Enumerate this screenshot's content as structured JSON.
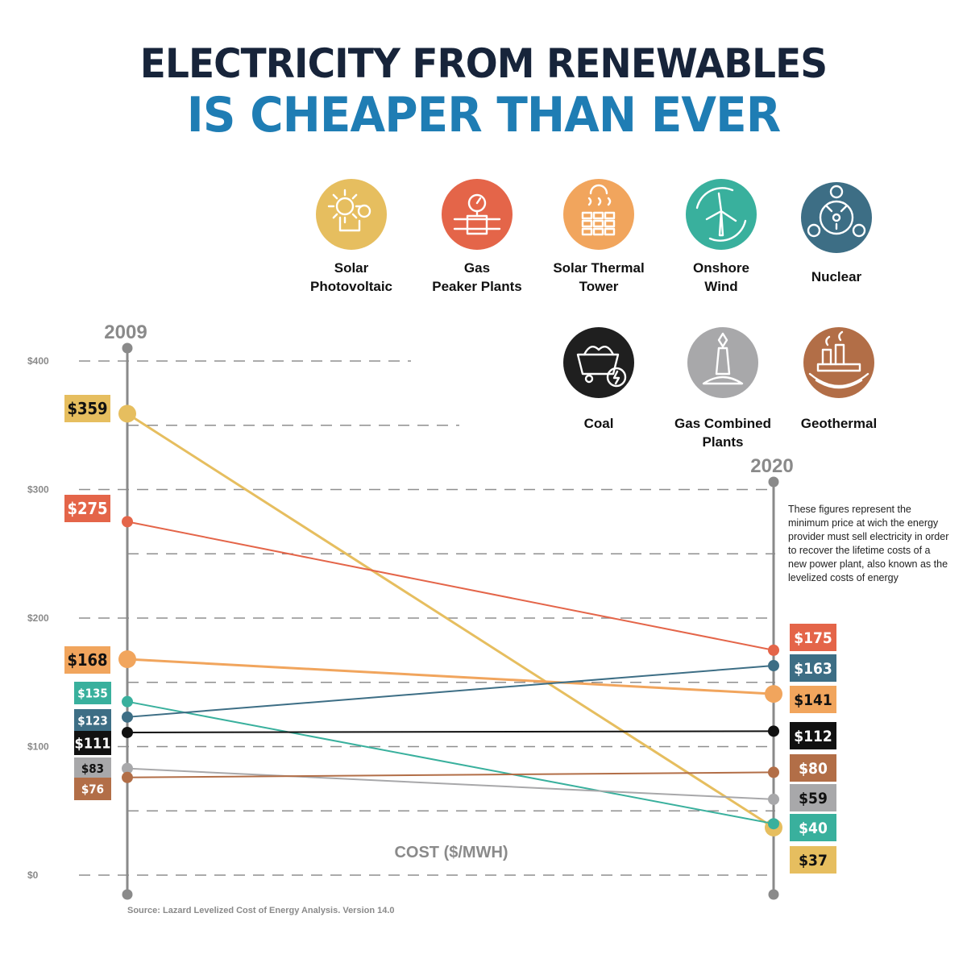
{
  "header": {
    "title_line1": "ELECTRICITY FROM RENEWABLES",
    "title_line2": "IS CHEAPER THAN EVER"
  },
  "legend": [
    {
      "key": "solar_pv",
      "line1": "Solar",
      "line2": "Photovoltaic",
      "color": "#e6be5f",
      "icon": "solar-panel-sun-icon"
    },
    {
      "key": "gas_peaker",
      "line1": "Gas",
      "line2": "Peaker Plants",
      "color": "#e46549",
      "icon": "gas-pipe-gauge-icon"
    },
    {
      "key": "solar_thermal",
      "line1": "Solar Thermal",
      "line2": "Tower",
      "color": "#f1a55d",
      "icon": "solar-thermal-heat-icon"
    },
    {
      "key": "onshore_wind",
      "line1": "Onshore",
      "line2": "Wind",
      "color": "#39b09d",
      "icon": "wind-turbine-icon"
    },
    {
      "key": "nuclear",
      "line1": "Nuclear",
      "line2": "",
      "color": "#3d6e85",
      "icon": "radiation-icon"
    },
    {
      "key": "coal",
      "line1": "Coal",
      "line2": "",
      "color": "#1f1f1f",
      "icon": "coal-cart-icon"
    },
    {
      "key": "gas_combined",
      "line1": "Gas Combined",
      "line2": "Plants",
      "color": "#a8a8aa",
      "icon": "gas-flame-tower-icon"
    },
    {
      "key": "geothermal",
      "line1": "Geothermal",
      "line2": "",
      "color": "#b26e47",
      "icon": "geothermal-plant-icon"
    }
  ],
  "note": "These figures represent the minimum price at wich the energy provider must sell electricity in order to recover the lifetime costs of a new power plant, also known as the levelized costs of energy",
  "source": "Source: Lazard Levelized Cost of Energy Analysis. Version 14.0",
  "chart_data": {
    "type": "line",
    "x": [
      "2009",
      "2020"
    ],
    "ylabel": "COST ($/MWH)",
    "ylim": [
      0,
      400
    ],
    "yticks": [
      0,
      100,
      200,
      300,
      400
    ],
    "ytick_labels": [
      "$0",
      "$100",
      "$200",
      "$300",
      "$400"
    ],
    "grid": "dashed horizontal",
    "series": [
      {
        "name": "Solar Photovoltaic",
        "color": "#e6be5f",
        "values": [
          359,
          37
        ],
        "labels": [
          "$359",
          "$37"
        ]
      },
      {
        "name": "Gas Peaker Plants",
        "color": "#e46549",
        "values": [
          275,
          175
        ],
        "labels": [
          "$275",
          "$175"
        ]
      },
      {
        "name": "Solar Thermal Tower",
        "color": "#f1a55d",
        "values": [
          168,
          141
        ],
        "labels": [
          "$168",
          "$141"
        ]
      },
      {
        "name": "Onshore Wind",
        "color": "#39b09d",
        "values": [
          135,
          40
        ],
        "labels": [
          "$135",
          "$40"
        ]
      },
      {
        "name": "Nuclear",
        "color": "#3d6e85",
        "values": [
          123,
          163
        ],
        "labels": [
          "$123",
          "$163"
        ]
      },
      {
        "name": "Coal",
        "color": "#111111",
        "values": [
          111,
          112
        ],
        "labels": [
          "$111",
          "$112"
        ]
      },
      {
        "name": "Gas Combined Plants",
        "color": "#a8a8aa",
        "values": [
          83,
          59
        ],
        "labels": [
          "$83",
          "$59"
        ]
      },
      {
        "name": "Geothermal",
        "color": "#b26e47",
        "values": [
          76,
          80
        ],
        "labels": [
          "$76",
          "$80"
        ]
      }
    ]
  }
}
